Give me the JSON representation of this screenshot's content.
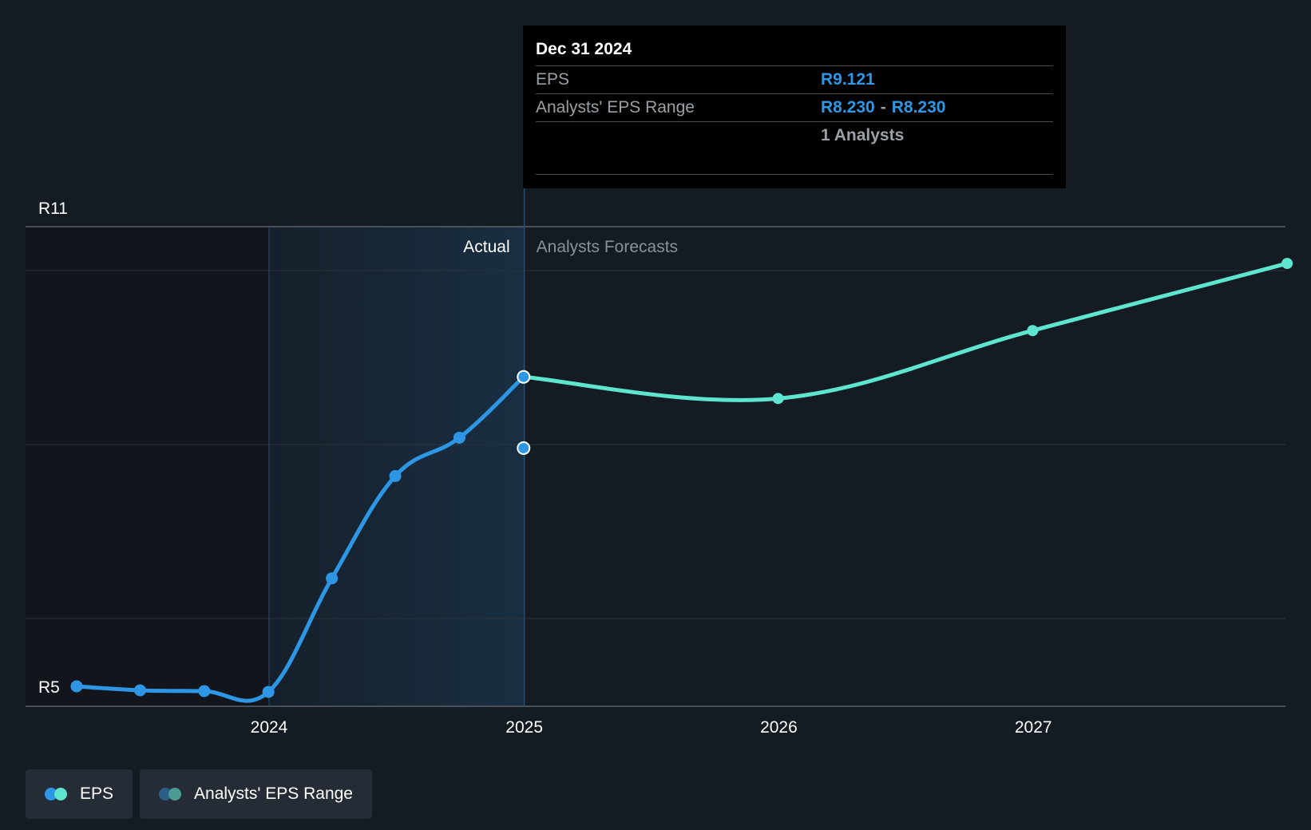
{
  "colors": {
    "background": "#151b23",
    "actual": "#2d97e6",
    "forecast": "#5ee5cf",
    "range_dark": "#2a5f8a",
    "range_light": "#4b9c93",
    "tooltip_value": "#2d97e6"
  },
  "tooltip": {
    "date": "Dec 31 2024",
    "eps_label": "EPS",
    "eps_value": "R9.121",
    "range_label": "Analysts' EPS Range",
    "range_low": "R8.230",
    "range_sep": "-",
    "range_high": "R8.230",
    "analysts": "1 Analysts"
  },
  "legend": {
    "eps_label": "EPS",
    "range_label": "Analysts' EPS Range"
  },
  "chart_data": {
    "type": "line",
    "section_labels": {
      "actual": "Actual",
      "forecast": "Analysts Forecasts"
    },
    "y_tick_labels": [
      "R11",
      "R5"
    ],
    "ylim": [
      5,
      11
    ],
    "xlim": [
      "2023-04-01",
      "2027-12-31"
    ],
    "x_tick_labels": [
      "2024",
      "2025",
      "2026",
      "2027"
    ],
    "x_ticks": [
      "2024-01-01",
      "2025-01-01",
      "2026-01-01",
      "2027-01-01"
    ],
    "actual_region_start": "2024-01-01",
    "forecast_start": "2025-01-01",
    "grid": true,
    "legend_position": "bottom-left",
    "series": [
      {
        "name": "EPS",
        "role": "actual",
        "points": [
          {
            "x": "2023-03-31",
            "y": 5.25
          },
          {
            "x": "2023-06-30",
            "y": 5.2
          },
          {
            "x": "2023-09-30",
            "y": 5.19
          },
          {
            "x": "2023-12-31",
            "y": 5.18
          },
          {
            "x": "2024-03-31",
            "y": 6.6
          },
          {
            "x": "2024-06-30",
            "y": 7.88
          },
          {
            "x": "2024-09-30",
            "y": 8.36
          },
          {
            "x": "2024-12-31",
            "y": 9.121
          }
        ]
      },
      {
        "name": "EPS",
        "role": "forecast",
        "points": [
          {
            "x": "2024-12-31",
            "y": 9.121
          },
          {
            "x": "2025-12-31",
            "y": 8.85
          },
          {
            "x": "2026-12-31",
            "y": 9.7
          },
          {
            "x": "2027-12-31",
            "y": 10.54
          }
        ]
      }
    ],
    "range": [
      {
        "x": "2024-12-31",
        "low": 8.23,
        "high": 8.23
      }
    ]
  }
}
